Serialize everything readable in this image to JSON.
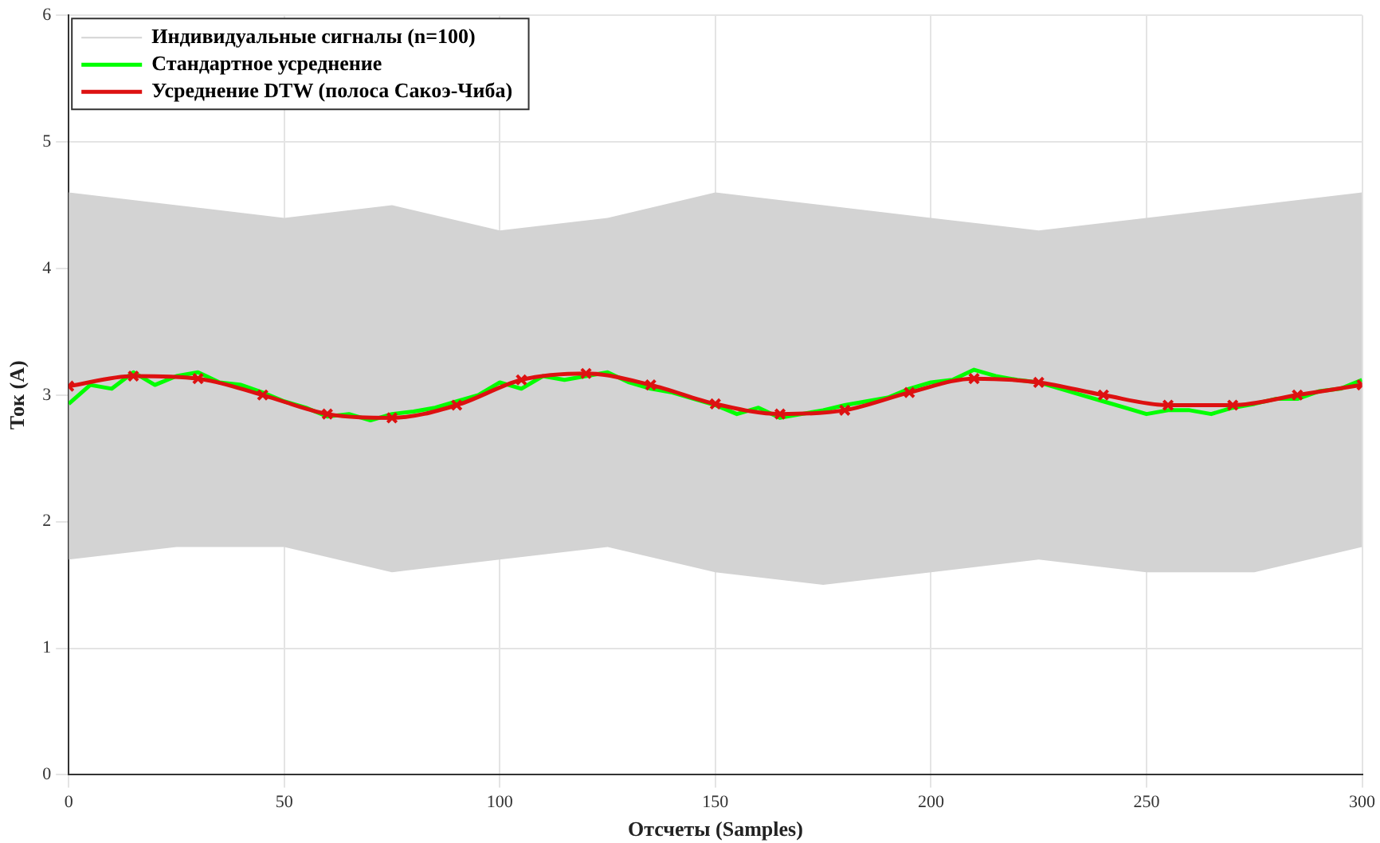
{
  "chart_data": {
    "type": "line",
    "xlabel": "Отсчеты (Samples)",
    "ylabel": "Ток (A)",
    "xlim": [
      0,
      300
    ],
    "xticks": [
      0,
      50,
      100,
      150,
      200,
      250,
      300
    ],
    "ylim": [
      0,
      6
    ],
    "yticks": [
      0,
      1,
      2,
      3,
      4,
      5,
      6
    ],
    "grid": true,
    "legend": "top left",
    "line_style": "solid",
    "series": [
      {
        "name": "Индивидуальные сигналы (n=100)",
        "color": "#d3d3d3",
        "type": "area",
        "x": [
          0,
          25,
          50,
          75,
          100,
          125,
          150,
          175,
          200,
          225,
          250,
          275,
          300
        ],
        "values": [
          null,
          null,
          null,
          null,
          null,
          null,
          null,
          null,
          null,
          null,
          null,
          null,
          null
        ],
        "lower": [
          1.7,
          1.8,
          1.8,
          1.6,
          1.7,
          1.8,
          1.6,
          1.5,
          1.6,
          1.7,
          1.6,
          1.6,
          1.8
        ],
        "upper": [
          4.6,
          4.5,
          4.4,
          4.5,
          4.3,
          4.4,
          4.6,
          4.5,
          4.4,
          4.3,
          4.4,
          4.5,
          4.6
        ]
      },
      {
        "name": "Стандартное усреднение",
        "color": "#00ff00",
        "marker": "none",
        "x": [
          0,
          5,
          10,
          15,
          20,
          25,
          30,
          35,
          40,
          45,
          50,
          55,
          60,
          65,
          70,
          75,
          80,
          85,
          90,
          95,
          100,
          105,
          110,
          115,
          120,
          125,
          130,
          135,
          140,
          145,
          150,
          155,
          160,
          165,
          170,
          175,
          180,
          185,
          190,
          195,
          200,
          205,
          210,
          215,
          220,
          225,
          230,
          235,
          240,
          245,
          250,
          255,
          260,
          265,
          270,
          275,
          280,
          285,
          290,
          295,
          300
        ],
        "values": [
          2.93,
          3.08,
          3.05,
          3.18,
          3.08,
          3.15,
          3.18,
          3.1,
          3.08,
          3.02,
          2.95,
          2.9,
          2.83,
          2.85,
          2.8,
          2.85,
          2.87,
          2.9,
          2.95,
          3.0,
          3.1,
          3.05,
          3.15,
          3.12,
          3.15,
          3.18,
          3.1,
          3.05,
          3.02,
          2.97,
          2.92,
          2.85,
          2.9,
          2.82,
          2.85,
          2.88,
          2.92,
          2.95,
          2.98,
          3.05,
          3.1,
          3.12,
          3.2,
          3.15,
          3.12,
          3.1,
          3.05,
          3.0,
          2.95,
          2.9,
          2.85,
          2.88,
          2.88,
          2.85,
          2.9,
          2.93,
          2.97,
          2.97,
          3.03,
          3.05,
          3.12
        ]
      },
      {
        "name": "Усреднение DTW (полоса Сакоэ-Чиба)",
        "color": "#dd1111",
        "marker": "cross",
        "x": [
          0,
          15,
          30,
          45,
          60,
          75,
          90,
          105,
          120,
          135,
          150,
          165,
          180,
          195,
          210,
          225,
          240,
          255,
          270,
          285,
          300
        ],
        "values": [
          3.07,
          3.15,
          3.13,
          3.0,
          2.85,
          2.82,
          2.92,
          3.12,
          3.17,
          3.08,
          2.93,
          2.85,
          2.88,
          3.02,
          3.13,
          3.1,
          3.0,
          2.92,
          2.92,
          3.0,
          3.08
        ]
      }
    ]
  }
}
